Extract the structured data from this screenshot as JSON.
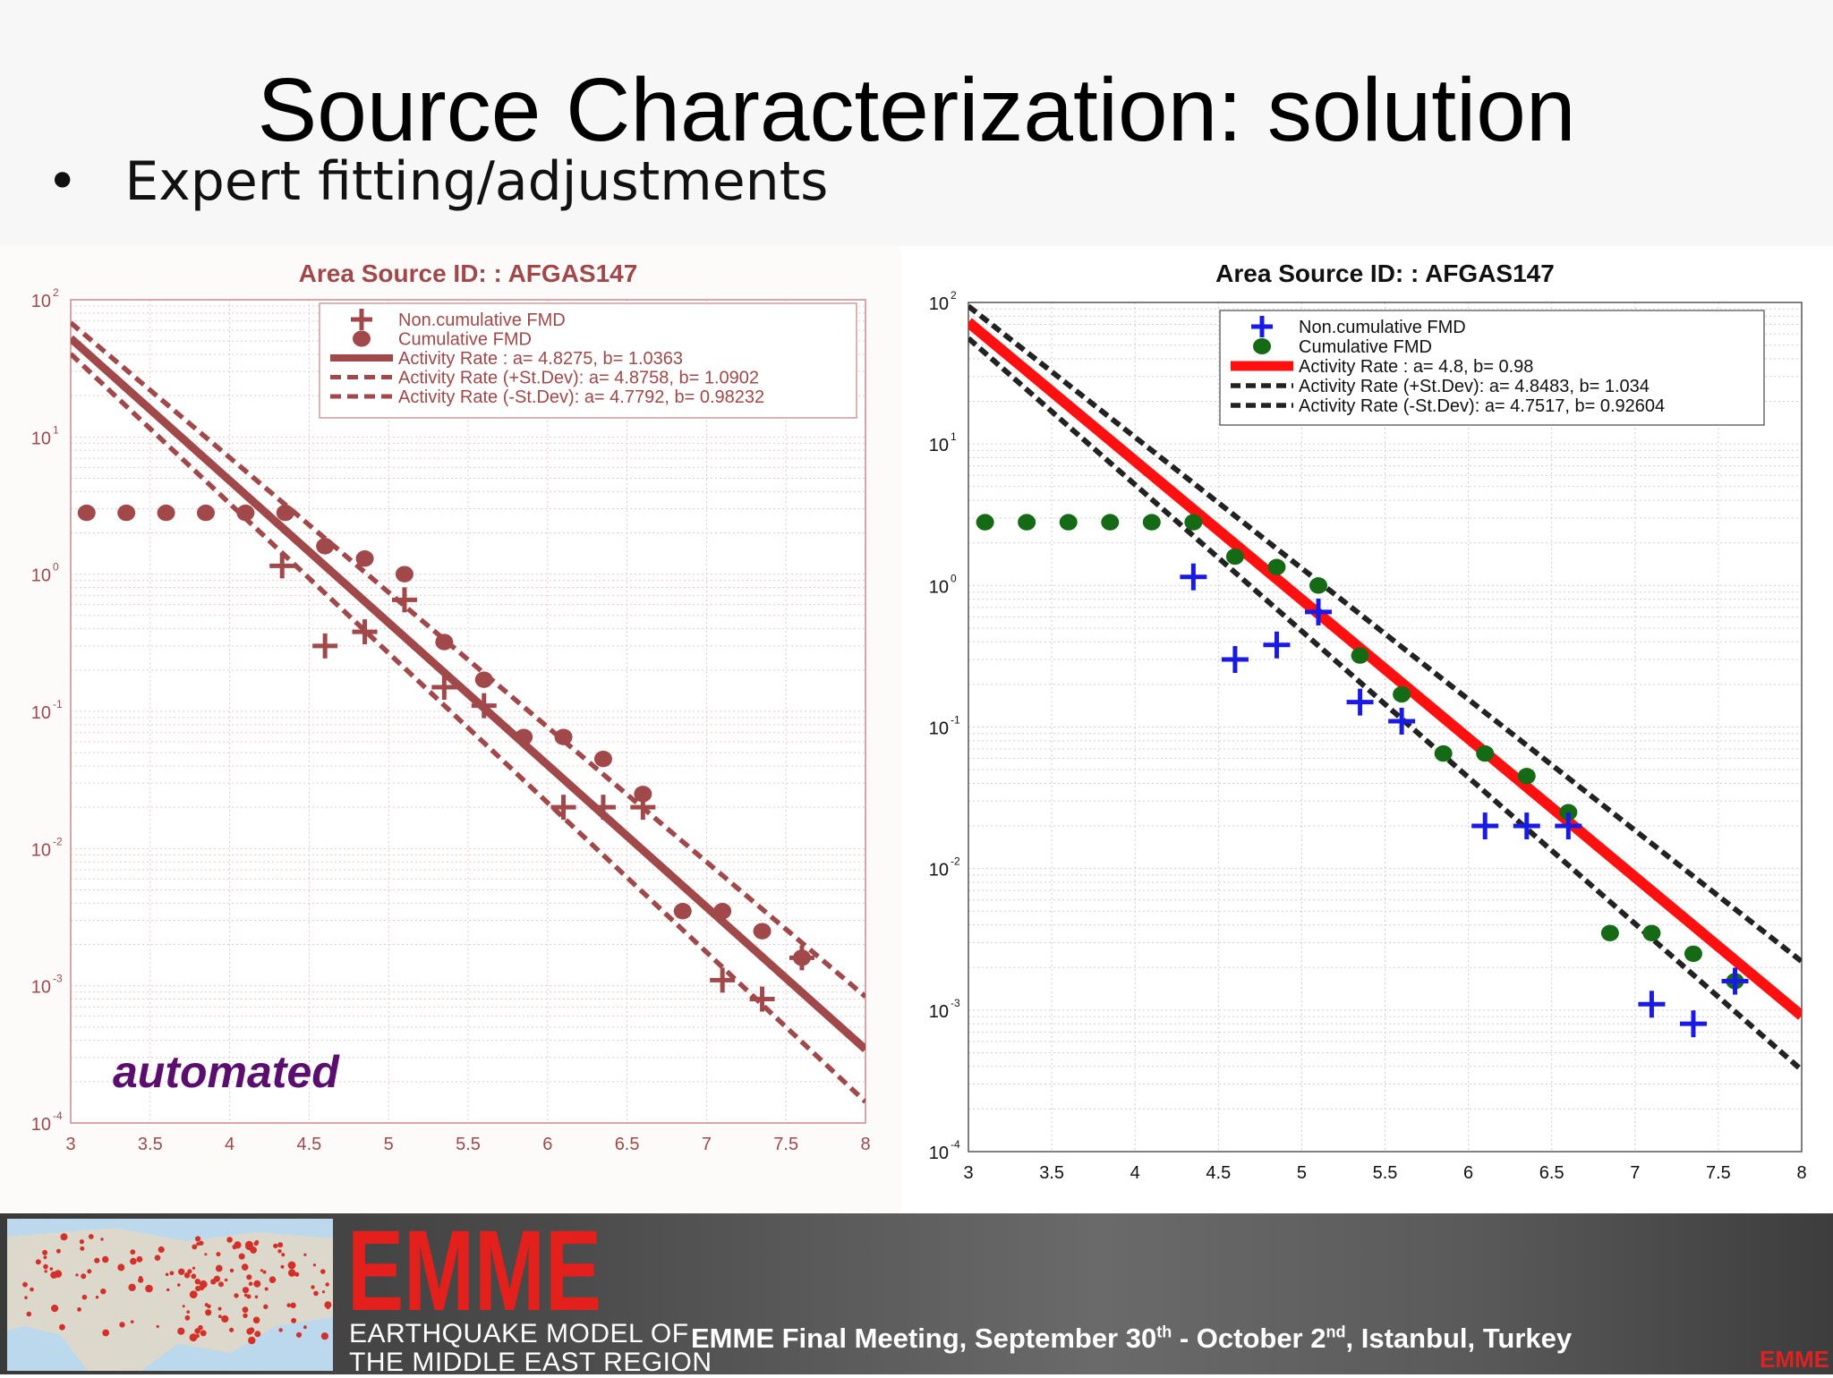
{
  "slide": {
    "title": "Source Characterization: solution",
    "bullet": "•",
    "bullet_text": "Expert fitting/adjustments"
  },
  "chart_data": [
    {
      "type": "scatter",
      "title": "Area Source ID: : AFGAS147",
      "annotation": "automated",
      "xlim": [
        3,
        8
      ],
      "ylim": [
        0.0001,
        100
      ],
      "y_scale": "log",
      "x_ticks": [
        "3",
        "3.5",
        "4",
        "4.5",
        "5",
        "5.5",
        "6",
        "6.5",
        "7",
        "7.5",
        "8"
      ],
      "y_ticks": [
        "10^-4",
        "10^-3",
        "10^-2",
        "10^-1",
        "10^0",
        "10^1",
        "10^2"
      ],
      "grid": true,
      "legend_position": "top-right",
      "colors": {
        "main": "#a0484a",
        "title": "#a0484a",
        "annotation": "#5a0f6e"
      },
      "series": [
        {
          "name": "Non.cumulative FMD",
          "marker": "plus",
          "x": [
            4.33,
            4.6,
            4.85,
            5.1,
            5.35,
            5.6,
            6.1,
            6.35,
            6.6,
            7.1,
            7.35,
            7.6
          ],
          "y": [
            1.15,
            0.3,
            0.38,
            0.65,
            0.15,
            0.11,
            0.02,
            0.02,
            0.02,
            0.0011,
            0.0008,
            0.0016
          ]
        },
        {
          "name": "Cumulative FMD",
          "marker": "circle",
          "x": [
            3.1,
            3.35,
            3.6,
            3.85,
            4.1,
            4.35,
            4.6,
            4.85,
            5.1,
            5.35,
            5.6,
            5.85,
            6.1,
            6.35,
            6.6,
            6.85,
            7.1,
            7.35,
            7.6
          ],
          "y": [
            2.8,
            2.8,
            2.8,
            2.8,
            2.8,
            2.8,
            1.6,
            1.3,
            1.0,
            0.32,
            0.17,
            0.065,
            0.065,
            0.045,
            0.025,
            0.0035,
            0.0035,
            0.0025,
            0.0016
          ]
        },
        {
          "name": "Activity Rate : a= 4.8275, b= 1.0363",
          "line": "solid",
          "a": 4.8275,
          "b": 1.0363
        },
        {
          "name": "Activity Rate (+St.Dev): a= 4.8758, b= 1.0902",
          "line": "dashed",
          "a": 4.8758,
          "b": 1.0902
        },
        {
          "name": "Activity Rate (-St.Dev): a= 4.7792, b= 0.98232",
          "line": "dashed",
          "a": 4.7792,
          "b": 0.98232
        }
      ]
    },
    {
      "type": "scatter",
      "title": "Area Source ID: : AFGAS147",
      "xlim": [
        3,
        8
      ],
      "ylim": [
        0.0001,
        100
      ],
      "y_scale": "log",
      "x_ticks": [
        "3",
        "3.5",
        "4",
        "4.5",
        "5",
        "5.5",
        "6",
        "6.5",
        "7",
        "7.5",
        "8"
      ],
      "y_ticks": [
        "10^-4",
        "10^-3",
        "10^-2",
        "10^-1",
        "10^0",
        "10^1",
        "10^2"
      ],
      "grid": true,
      "legend_position": "top-right",
      "colors": {
        "noncum": "#1a1ae6",
        "cum": "#156a15",
        "fit": "#ff1010",
        "stdev": "#222222",
        "title": "#111111"
      },
      "series": [
        {
          "name": "Non.cumulative FMD",
          "marker": "plus",
          "x": [
            4.35,
            4.6,
            4.85,
            5.1,
            5.35,
            5.6,
            6.1,
            6.35,
            6.6,
            7.1,
            7.35,
            7.6
          ],
          "y": [
            1.15,
            0.3,
            0.38,
            0.65,
            0.15,
            0.11,
            0.02,
            0.02,
            0.02,
            0.0011,
            0.0008,
            0.0016
          ]
        },
        {
          "name": "Cumulative FMD",
          "marker": "circle",
          "x": [
            3.1,
            3.35,
            3.6,
            3.85,
            4.1,
            4.35,
            4.6,
            4.85,
            5.1,
            5.35,
            5.6,
            5.85,
            6.1,
            6.35,
            6.6,
            6.85,
            7.1,
            7.35,
            7.6
          ],
          "y": [
            2.8,
            2.8,
            2.8,
            2.8,
            2.8,
            2.8,
            1.6,
            1.35,
            1.0,
            0.32,
            0.17,
            0.065,
            0.065,
            0.045,
            0.025,
            0.0035,
            0.0035,
            0.0025,
            0.0016
          ]
        },
        {
          "name": "Activity Rate : a= 4.8, b= 0.98",
          "line": "solid",
          "a": 4.8,
          "b": 0.98
        },
        {
          "name": "Activity Rate (+St.Dev): a= 4.8483, b= 1.034",
          "line": "dashed",
          "a": 4.8483,
          "b": 1.034
        },
        {
          "name": "Activity Rate (-St.Dev): a= 4.7517, b= 0.92604",
          "line": "dashed",
          "a": 4.7517,
          "b": 0.92604
        }
      ]
    }
  ],
  "footer": {
    "logo_text": "EMME",
    "org_line1": "EARTHQUAKE MODEL OF",
    "org_line2": "THE MIDDLE EAST REGION",
    "meeting_part1": "EMME Final Meeting, September 30",
    "meeting_sup1": "th",
    "meeting_part2": " - October 2",
    "meeting_sup2": "nd",
    "meeting_part3": ", Istanbul, Turkey",
    "mini_logo": "EMME",
    "map_image": "world-seismicity-map"
  }
}
